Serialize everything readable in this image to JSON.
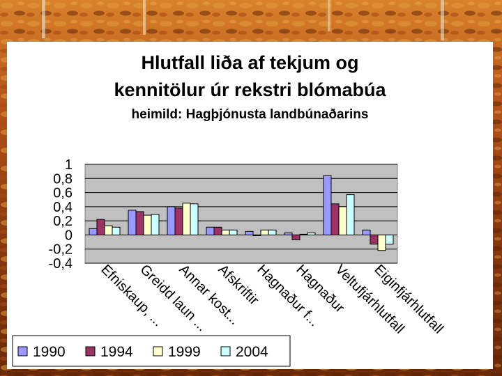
{
  "title_line1": "Hlutfall liða af tekjum og",
  "title_line2": "kennitölur úr rekstri blómabúa",
  "subtitle": "heimild: Hagþjónusta landbúnaðarins",
  "colors": {
    "series": [
      "#9999ff",
      "#993366",
      "#ffffcc",
      "#ccffff"
    ],
    "plot_bg": "#c0c0c0",
    "gridline": "#000000"
  },
  "chart_data": {
    "type": "bar",
    "title": "Hlutfall liða af tekjum og kennitölur úr rekstri blómabúa",
    "subtitle": "heimild: Hagþjónusta landbúnaðarins",
    "categories": [
      "Efniskaup, ...",
      "Greidd laun ...",
      "Annar kost...",
      "Afskriftir",
      "Hagnaður f...",
      "Hagnaður",
      "Veltufjárhlutfall",
      "Eiginfjárhlutfall"
    ],
    "series": [
      {
        "name": "1990",
        "values": [
          0.09,
          0.35,
          0.4,
          0.11,
          0.05,
          0.03,
          0.84,
          0.07
        ]
      },
      {
        "name": "1994",
        "values": [
          0.22,
          0.33,
          0.38,
          0.11,
          -0.01,
          -0.07,
          0.44,
          -0.13
        ]
      },
      {
        "name": "1999",
        "values": [
          0.13,
          0.28,
          0.45,
          0.07,
          0.07,
          0.01,
          0.4,
          -0.22
        ]
      },
      {
        "name": "2004",
        "values": [
          0.11,
          0.29,
          0.44,
          0.07,
          0.07,
          0.03,
          0.57,
          -0.13
        ]
      }
    ],
    "y_ticks": [
      "1",
      "0,8",
      "0,6",
      "0,4",
      "0,2",
      "0",
      "-0,2",
      "-0,4"
    ],
    "ylim": [
      -0.4,
      1.0
    ],
    "grid": true,
    "legend_position": "bottom"
  }
}
